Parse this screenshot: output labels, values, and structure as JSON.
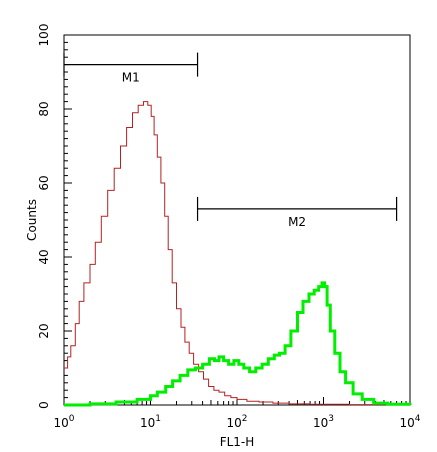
{
  "chart_data": {
    "type": "line",
    "title": "",
    "xlabel": "FL1-H",
    "ylabel": "Counts",
    "xscale": "log",
    "xlim": [
      1,
      10000
    ],
    "ylim": [
      0,
      100
    ],
    "x_ticks": [
      {
        "value": 1,
        "base": "10",
        "exp": "0"
      },
      {
        "value": 10,
        "base": "10",
        "exp": "1"
      },
      {
        "value": 100,
        "base": "10",
        "exp": "2"
      },
      {
        "value": 1000,
        "base": "10",
        "exp": "3"
      },
      {
        "value": 10000,
        "base": "10",
        "exp": "4"
      }
    ],
    "y_ticks": [
      "0",
      "20",
      "40",
      "60",
      "80",
      "100"
    ],
    "series": [
      {
        "color": "#b22222",
        "x": [
          1,
          1.1,
          1.2,
          1.35,
          1.5,
          1.7,
          2,
          2.3,
          2.7,
          3.2,
          3.8,
          4.5,
          5.3,
          6.2,
          7.2,
          8.3,
          9.3,
          10.2,
          11,
          12,
          13.2,
          14.6,
          16,
          17.8,
          20,
          22.5,
          25,
          28,
          31.5,
          36,
          41,
          47,
          54,
          62,
          72,
          85,
          100,
          130,
          180,
          260,
          400,
          700,
          2000,
          9000
        ],
        "y": [
          10,
          13,
          16,
          22,
          28,
          33,
          38,
          44,
          51,
          58,
          64,
          70,
          75,
          79,
          81,
          82,
          81,
          78,
          73,
          67,
          60,
          51,
          42,
          33,
          26,
          21,
          17,
          14,
          11,
          9,
          7,
          5,
          4,
          3.5,
          2.5,
          2,
          1.5,
          1,
          0.8,
          0.5,
          0.3,
          0.2,
          0.1,
          0
        ]
      },
      {
        "color": "#00ee00",
        "x": [
          1,
          2,
          4,
          7,
          10,
          12,
          15,
          18,
          22,
          27,
          33,
          40,
          48,
          55,
          62,
          70,
          80,
          92,
          105,
          120,
          140,
          165,
          195,
          230,
          270,
          310,
          360,
          420,
          500,
          580,
          680,
          780,
          880,
          960,
          1030,
          1100,
          1200,
          1350,
          1550,
          1800,
          2200,
          2800,
          3800,
          5500,
          10000
        ],
        "y": [
          0,
          0.3,
          0.8,
          1.5,
          2.5,
          3.5,
          5,
          6.5,
          8,
          9.5,
          10,
          11,
          12.5,
          12,
          13,
          12,
          11,
          12,
          11,
          10,
          9,
          10,
          11,
          12.5,
          13.5,
          14,
          16,
          20,
          25,
          28,
          30,
          31,
          32,
          33,
          32,
          27,
          20,
          14,
          9,
          6,
          3,
          1.5,
          0.5,
          0.2,
          0
        ]
      }
    ],
    "markers": [
      {
        "label": "M1",
        "x_start": 1,
        "x_end": 35,
        "y": 92
      },
      {
        "label": "M2",
        "x_start": 35,
        "x_end": 7000,
        "y": 53
      }
    ]
  }
}
